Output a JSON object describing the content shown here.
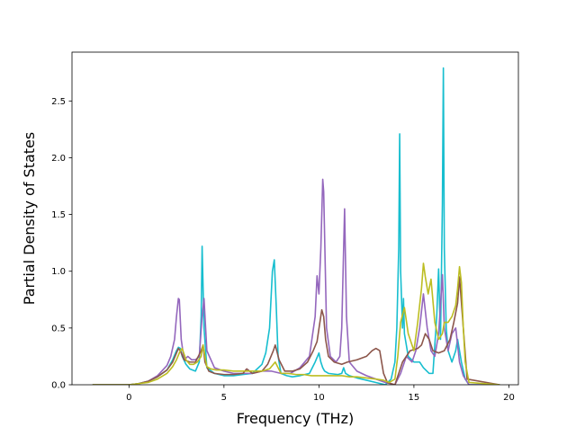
{
  "chart_data": {
    "type": "line",
    "title": "",
    "xlabel": "Frequency (THz)",
    "ylabel": "Partial Density of States",
    "xlim": [
      -3.0,
      20.5
    ],
    "ylim": [
      0.0,
      2.93
    ],
    "xticks": [
      0,
      5,
      10,
      15,
      20
    ],
    "xtick_labels": [
      "0",
      "5",
      "10",
      "15",
      "20"
    ],
    "yticks": [
      0.0,
      0.5,
      1.0,
      1.5,
      2.0,
      2.5
    ],
    "ytick_labels": [
      "0.0",
      "0.5",
      "1.0",
      "1.5",
      "2.0",
      "2.5"
    ],
    "grid": false,
    "legend": "none",
    "series": [
      {
        "color": "#17becf",
        "x": [
          -1.9,
          0.0,
          0.5,
          1.0,
          1.5,
          2.0,
          2.3,
          2.5,
          2.6,
          2.7,
          2.8,
          3.0,
          3.2,
          3.5,
          3.7,
          3.8,
          3.85,
          3.95,
          4.1,
          4.5,
          5.0,
          5.5,
          6.0,
          6.5,
          7.0,
          7.2,
          7.4,
          7.55,
          7.65,
          7.75,
          7.85,
          8.0,
          8.3,
          8.6,
          9.0,
          9.5,
          9.8,
          10.0,
          10.1,
          10.2,
          10.3,
          10.5,
          11.0,
          11.2,
          11.3,
          11.4,
          11.6,
          12.0,
          12.5,
          13.0,
          13.5,
          13.8,
          14.0,
          14.1,
          14.2,
          14.25,
          14.3,
          14.4,
          14.45,
          14.5,
          14.7,
          15.0,
          15.3,
          15.5,
          15.8,
          16.0,
          16.2,
          16.3,
          16.4,
          16.5,
          16.55,
          16.6,
          16.7,
          16.8,
          17.0,
          17.2,
          17.3,
          17.5,
          17.7,
          17.9,
          19.5
        ],
        "y": [
          0.0,
          0.0,
          0.01,
          0.03,
          0.07,
          0.13,
          0.22,
          0.3,
          0.33,
          0.32,
          0.25,
          0.18,
          0.14,
          0.12,
          0.2,
          0.6,
          1.22,
          0.5,
          0.15,
          0.1,
          0.08,
          0.08,
          0.09,
          0.1,
          0.18,
          0.28,
          0.5,
          1.0,
          1.1,
          0.7,
          0.25,
          0.1,
          0.08,
          0.07,
          0.08,
          0.1,
          0.2,
          0.28,
          0.2,
          0.15,
          0.12,
          0.1,
          0.09,
          0.1,
          0.15,
          0.1,
          0.08,
          0.06,
          0.04,
          0.02,
          0.0,
          0.05,
          0.2,
          0.5,
          1.2,
          2.21,
          1.0,
          0.5,
          0.76,
          0.45,
          0.25,
          0.2,
          0.2,
          0.15,
          0.1,
          0.1,
          0.6,
          1.02,
          0.4,
          1.6,
          2.79,
          1.2,
          0.5,
          0.3,
          0.2,
          0.3,
          0.4,
          0.2,
          0.05,
          0.0,
          0.0
        ]
      },
      {
        "color": "#9467bd",
        "x": [
          -1.9,
          0.0,
          0.5,
          1.0,
          1.5,
          2.0,
          2.2,
          2.4,
          2.5,
          2.6,
          2.65,
          2.75,
          2.9,
          3.1,
          3.3,
          3.5,
          3.7,
          3.85,
          3.95,
          4.1,
          4.5,
          5.0,
          5.5,
          6.0,
          6.5,
          7.0,
          7.5,
          8.0,
          8.5,
          9.0,
          9.5,
          9.8,
          9.9,
          10.0,
          10.1,
          10.2,
          10.25,
          10.3,
          10.4,
          10.6,
          10.9,
          11.1,
          11.2,
          11.3,
          11.35,
          11.45,
          11.6,
          12.0,
          12.5,
          13.0,
          13.5,
          14.0,
          14.3,
          14.6,
          14.9,
          15.1,
          15.3,
          15.5,
          15.7,
          15.9,
          16.1,
          16.3,
          16.5,
          16.6,
          16.8,
          17.0,
          17.2,
          17.4,
          17.6,
          17.9,
          19.5
        ],
        "y": [
          0.0,
          0.0,
          0.01,
          0.03,
          0.08,
          0.17,
          0.25,
          0.4,
          0.6,
          0.76,
          0.75,
          0.4,
          0.22,
          0.25,
          0.22,
          0.22,
          0.25,
          0.6,
          0.76,
          0.3,
          0.15,
          0.12,
          0.1,
          0.1,
          0.1,
          0.12,
          0.12,
          0.1,
          0.1,
          0.15,
          0.25,
          0.6,
          0.96,
          0.8,
          1.2,
          1.81,
          1.7,
          1.3,
          0.5,
          0.25,
          0.2,
          0.25,
          0.5,
          1.2,
          1.55,
          0.6,
          0.2,
          0.12,
          0.08,
          0.05,
          0.02,
          0.0,
          0.1,
          0.25,
          0.2,
          0.3,
          0.5,
          0.8,
          0.5,
          0.3,
          0.25,
          0.45,
          0.97,
          0.5,
          0.3,
          0.45,
          0.5,
          0.2,
          0.08,
          0.0,
          0.0
        ]
      },
      {
        "color": "#8c564b",
        "x": [
          -1.9,
          0.0,
          0.5,
          1.0,
          1.5,
          2.0,
          2.3,
          2.5,
          2.6,
          2.7,
          2.9,
          3.2,
          3.5,
          3.8,
          3.9,
          4.0,
          4.2,
          4.5,
          5.0,
          5.5,
          6.0,
          6.2,
          6.5,
          7.0,
          7.3,
          7.6,
          7.7,
          7.9,
          8.2,
          8.6,
          9.0,
          9.4,
          9.7,
          9.9,
          10.05,
          10.15,
          10.25,
          10.35,
          10.5,
          10.8,
          11.2,
          11.5,
          12.0,
          12.5,
          12.8,
          13.0,
          13.2,
          13.4,
          13.6,
          14.0,
          14.4,
          14.8,
          15.2,
          15.4,
          15.6,
          15.8,
          16.0,
          16.3,
          16.6,
          16.9,
          17.1,
          17.3,
          17.4,
          17.6,
          17.8,
          19.5
        ],
        "y": [
          0.0,
          0.0,
          0.01,
          0.03,
          0.07,
          0.13,
          0.2,
          0.28,
          0.32,
          0.3,
          0.22,
          0.2,
          0.2,
          0.3,
          0.35,
          0.2,
          0.12,
          0.1,
          0.09,
          0.09,
          0.1,
          0.14,
          0.1,
          0.12,
          0.18,
          0.3,
          0.35,
          0.22,
          0.12,
          0.12,
          0.14,
          0.2,
          0.3,
          0.38,
          0.55,
          0.66,
          0.6,
          0.4,
          0.25,
          0.2,
          0.18,
          0.2,
          0.22,
          0.25,
          0.3,
          0.32,
          0.3,
          0.1,
          0.02,
          0.0,
          0.2,
          0.3,
          0.32,
          0.35,
          0.45,
          0.4,
          0.3,
          0.28,
          0.3,
          0.4,
          0.55,
          0.72,
          0.95,
          0.5,
          0.05,
          0.0
        ]
      },
      {
        "color": "#bcbd22",
        "x": [
          -1.9,
          0.0,
          0.5,
          1.0,
          1.5,
          2.0,
          2.3,
          2.5,
          2.6,
          2.7,
          2.8,
          3.0,
          3.2,
          3.4,
          3.6,
          3.8,
          3.9,
          4.0,
          4.1,
          4.3,
          4.6,
          5.0,
          5.5,
          6.0,
          6.5,
          7.0,
          7.4,
          7.6,
          7.7,
          7.85,
          8.0,
          8.4,
          8.8,
          9.2,
          9.6,
          10.0,
          10.4,
          10.8,
          11.2,
          11.6,
          12.0,
          12.5,
          13.0,
          13.4,
          13.7,
          14.0,
          14.15,
          14.3,
          14.5,
          14.7,
          15.0,
          15.2,
          15.4,
          15.5,
          15.6,
          15.75,
          15.9,
          16.1,
          16.3,
          16.5,
          16.6,
          16.8,
          17.0,
          17.2,
          17.3,
          17.4,
          17.5,
          17.6,
          17.7,
          17.9,
          19.5
        ],
        "y": [
          0.0,
          0.0,
          0.01,
          0.02,
          0.05,
          0.1,
          0.16,
          0.22,
          0.26,
          0.3,
          0.32,
          0.22,
          0.18,
          0.18,
          0.2,
          0.25,
          0.35,
          0.25,
          0.16,
          0.14,
          0.13,
          0.13,
          0.12,
          0.12,
          0.12,
          0.12,
          0.14,
          0.18,
          0.2,
          0.15,
          0.1,
          0.1,
          0.09,
          0.09,
          0.08,
          0.08,
          0.08,
          0.08,
          0.08,
          0.07,
          0.07,
          0.06,
          0.05,
          0.04,
          0.02,
          0.05,
          0.25,
          0.55,
          0.68,
          0.45,
          0.3,
          0.55,
          0.85,
          1.07,
          0.95,
          0.8,
          0.93,
          0.55,
          0.4,
          0.45,
          0.55,
          0.55,
          0.6,
          0.7,
          0.85,
          1.04,
          0.9,
          0.5,
          0.2,
          0.02,
          0.0
        ]
      }
    ]
  }
}
